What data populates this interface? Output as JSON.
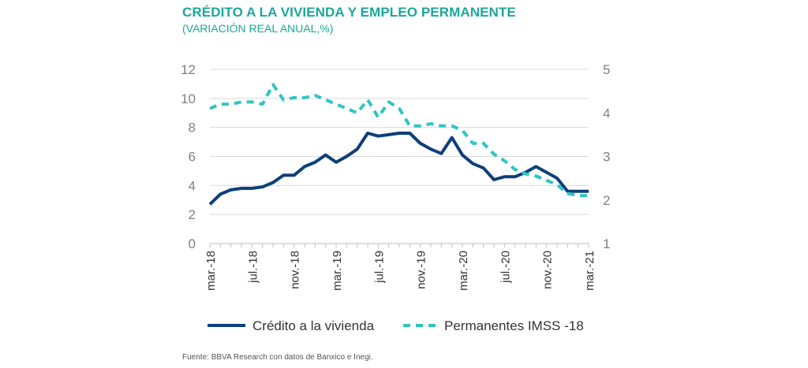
{
  "header": {
    "title": "CRÉDITO A LA VIVIENDA Y EMPLEO PERMANENTE",
    "subtitle": "(VARIACIÓN REAL ANUAL,%)"
  },
  "footer": {
    "source": "Fuente: BBVA Research con datos de Banxico e Inegi."
  },
  "colors": {
    "accent": "#1aa79a",
    "credito": "#0d3f7a",
    "permanentes": "#2fc4c4",
    "grid": "#d9d9d9"
  },
  "chart_data": {
    "type": "line",
    "title": "CRÉDITO A LA VIVIENDA Y EMPLEO PERMANENTE",
    "subtitle": "(VARIACIÓN REAL ANUAL,%)",
    "x_tick_labels": [
      "mar.-18",
      "jul.-18",
      "nov.-18",
      "mar.-19",
      "jul.-19",
      "nov.-19",
      "mar.-20",
      "jul.-20",
      "nov.-20",
      "mar.-21"
    ],
    "x_range": [
      "2018-03",
      "2021-03"
    ],
    "ylim_left": [
      0,
      12
    ],
    "yticks_left": [
      0,
      2,
      4,
      6,
      8,
      10,
      12
    ],
    "ylim_right": [
      1,
      5
    ],
    "yticks_right": [
      1,
      2,
      3,
      4,
      5
    ],
    "grid": "horizontal",
    "legend_position": "bottom",
    "series": [
      {
        "name": "Crédito a la vivienda",
        "axis": "left",
        "style": "solid",
        "x": [
          "2018-03",
          "2018-04",
          "2018-05",
          "2018-06",
          "2018-07",
          "2018-08",
          "2018-09",
          "2018-10",
          "2018-11",
          "2018-12",
          "2019-01",
          "2019-02",
          "2019-03",
          "2019-04",
          "2019-05",
          "2019-06",
          "2019-07",
          "2019-08",
          "2019-09",
          "2019-10",
          "2019-11",
          "2019-12",
          "2020-01",
          "2020-02",
          "2020-03",
          "2020-04",
          "2020-05",
          "2020-06",
          "2020-07",
          "2020-08",
          "2020-09",
          "2020-10",
          "2020-11",
          "2020-12",
          "2021-01",
          "2021-02",
          "2021-03"
        ],
        "y": [
          2.7,
          3.4,
          3.7,
          3.8,
          3.8,
          3.9,
          4.2,
          4.7,
          4.7,
          5.3,
          5.6,
          6.1,
          5.6,
          6.0,
          6.5,
          7.6,
          7.4,
          7.5,
          7.6,
          7.6,
          6.9,
          6.5,
          6.2,
          7.3,
          6.1,
          5.5,
          5.2,
          4.4,
          4.6,
          4.6,
          4.9,
          5.3,
          4.9,
          4.5,
          3.6,
          3.6,
          3.6
        ]
      },
      {
        "name": "Permanentes IMSS -18",
        "axis": "right",
        "style": "dashed",
        "x": [
          "2018-03",
          "2018-04",
          "2018-05",
          "2018-06",
          "2018-07",
          "2018-08",
          "2018-09",
          "2018-10",
          "2018-11",
          "2018-12",
          "2019-01",
          "2019-02",
          "2019-03",
          "2019-04",
          "2019-05",
          "2019-06",
          "2019-07",
          "2019-08",
          "2019-09",
          "2019-10",
          "2019-11",
          "2019-12",
          "2020-01",
          "2020-02",
          "2020-03",
          "2020-04",
          "2020-05",
          "2020-06",
          "2020-07",
          "2020-08",
          "2020-09",
          "2020-10",
          "2020-11",
          "2020-12",
          "2021-01",
          "2021-02",
          "2021-03"
        ],
        "y": [
          4.1,
          4.2,
          4.2,
          4.25,
          4.25,
          4.2,
          4.65,
          4.3,
          4.35,
          4.35,
          4.4,
          4.3,
          4.2,
          4.1,
          4.0,
          4.3,
          3.9,
          4.25,
          4.1,
          3.7,
          3.7,
          3.75,
          3.7,
          3.7,
          3.6,
          3.3,
          3.3,
          3.05,
          2.9,
          2.7,
          2.6,
          2.55,
          2.45,
          2.35,
          2.15,
          2.1,
          2.1
        ]
      }
    ]
  }
}
